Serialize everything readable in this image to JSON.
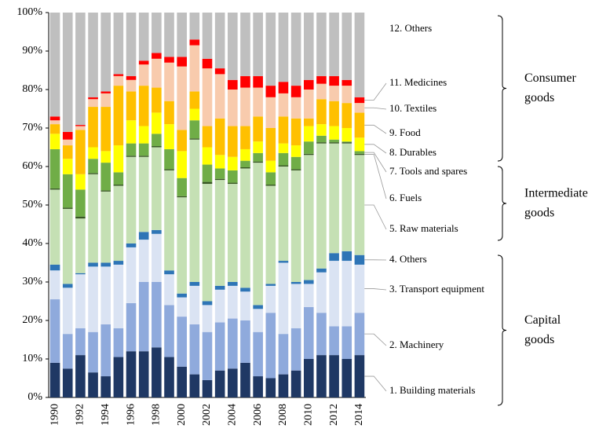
{
  "chart_data": {
    "type": "stacked-bar",
    "categories": [
      "1990",
      null,
      "1992",
      null,
      "1994",
      null,
      "1996",
      null,
      "1998",
      null,
      "2000",
      null,
      "2002",
      null,
      "2004",
      null,
      "2006",
      null,
      "2008",
      null,
      "2010",
      null,
      "2012",
      null,
      "2014"
    ],
    "ylim": [
      0,
      100
    ],
    "yticks": [
      {
        "value": 0,
        "label": "0%"
      },
      {
        "value": 10,
        "label": "10%"
      },
      {
        "value": 20,
        "label": "20%"
      },
      {
        "value": 30,
        "label": "30%"
      },
      {
        "value": 40,
        "label": "40%"
      },
      {
        "value": 50,
        "label": "50%"
      },
      {
        "value": 60,
        "label": "60%"
      },
      {
        "value": 70,
        "label": "70%"
      },
      {
        "value": 80,
        "label": "80%"
      },
      {
        "value": 90,
        "label": "90%"
      },
      {
        "value": 100,
        "label": "100%"
      }
    ],
    "series": [
      {
        "name": "1. Building materials",
        "color": "#1f3864",
        "values": [
          9,
          7.5,
          11,
          6.5,
          5.5,
          10.5,
          12,
          12,
          13,
          10.5,
          8,
          6,
          4.5,
          7,
          7.5,
          9,
          5.5,
          5,
          6,
          7,
          10,
          11,
          11,
          10,
          11
        ]
      },
      {
        "name": "2. Machinery",
        "color": "#8faadc",
        "values": [
          16.5,
          9,
          7,
          10.5,
          13.5,
          7.5,
          12.5,
          18,
          17,
          13.5,
          13,
          13,
          12.5,
          12.5,
          13,
          11,
          11.5,
          17,
          10.5,
          11,
          13.5,
          11,
          7.5,
          8.5,
          11
        ]
      },
      {
        "name": "3. Transport equipment",
        "color": "#dae3f3",
        "values": [
          7.5,
          12,
          14,
          17,
          15,
          16.5,
          14.5,
          11,
          12.5,
          8,
          5,
          10,
          7,
          8.5,
          8.5,
          7.5,
          6,
          7,
          18.5,
          11.5,
          6,
          10.5,
          17,
          17,
          12.5
        ]
      },
      {
        "name": "4. Others",
        "color": "#2e75b6",
        "values": [
          1.5,
          1,
          0.3,
          1,
          1,
          1,
          1,
          2,
          1,
          1,
          1,
          1,
          1,
          1,
          1,
          1,
          1,
          0.5,
          0.5,
          0.5,
          1,
          1,
          2,
          2.5,
          2.5
        ]
      },
      {
        "name": "5. Raw materials",
        "color": "#c5e0b4",
        "values": [
          19.5,
          19.5,
          14.2,
          23,
          18.5,
          19.5,
          22.5,
          19.5,
          21.5,
          26,
          25,
          37,
          30.5,
          27.5,
          25.5,
          31,
          37,
          25.5,
          24.5,
          29,
          32.5,
          32.5,
          28.5,
          28,
          26
        ]
      },
      {
        "name": "6. Fuels",
        "color": "#385723",
        "values": [
          0.3,
          0.3,
          0.5,
          0.3,
          0.3,
          0.3,
          0.3,
          0.3,
          0.3,
          0.3,
          0.3,
          0.3,
          0.5,
          0.3,
          0.3,
          0.3,
          0.3,
          0.3,
          0.3,
          0.3,
          0.3,
          0.3,
          0.3,
          0.3,
          0.3
        ]
      },
      {
        "name": "7. Tools and spares",
        "color": "#70ad47",
        "values": [
          10.2,
          8.7,
          7,
          3.7,
          7.2,
          3.2,
          3.2,
          3.2,
          3.2,
          5.2,
          4.7,
          4.7,
          4.5,
          2.7,
          3.2,
          1.7,
          2.2,
          3.2,
          3.2,
          3.2,
          3.2,
          1.7,
          0.7,
          0.2,
          0.7
        ]
      },
      {
        "name": "8. Durables",
        "color": "#ffff00",
        "values": [
          4,
          4,
          4,
          3,
          3,
          7,
          6,
          4.5,
          5.5,
          6.5,
          7,
          3,
          4.5,
          3.5,
          3.5,
          3,
          3,
          3,
          2.5,
          3,
          4,
          3,
          3.5,
          3.5,
          3.5
        ]
      },
      {
        "name": "9. Food",
        "color": "#ffc000",
        "values": [
          2.5,
          3.5,
          11.5,
          10.5,
          11.5,
          15.5,
          7.5,
          10.5,
          6.5,
          6,
          5.5,
          4.5,
          5.5,
          9.5,
          8,
          6,
          6.5,
          8.5,
          7,
          7,
          2,
          6.5,
          6.5,
          6.5,
          6.5
        ]
      },
      {
        "name": "10. Textiles",
        "color": "#f8cbad",
        "values": [
          1,
          1.5,
          1,
          2,
          3.5,
          2.5,
          3,
          5.5,
          7.5,
          10,
          16.5,
          12,
          15,
          11.5,
          9.5,
          10,
          7.5,
          8,
          6,
          5.5,
          7.5,
          4,
          4,
          4.5,
          2.5
        ]
      },
      {
        "name": "11. Medicines",
        "color": "#ff0000",
        "values": [
          1,
          2,
          0.3,
          0.5,
          0.5,
          0.5,
          1,
          1,
          1.5,
          1.5,
          2.5,
          1.5,
          2.5,
          1.5,
          2.5,
          3,
          3,
          3,
          3,
          3,
          2.5,
          2,
          2.5,
          1.5,
          1.5
        ]
      },
      {
        "name": "12. Others",
        "color": "#bfbfbf",
        "values": [
          27,
          31,
          29.2,
          22,
          20.5,
          16,
          16.5,
          12.5,
          10.5,
          11.5,
          11.5,
          7,
          12,
          14.5,
          17.5,
          16.5,
          16.5,
          19,
          18,
          19,
          17.5,
          16.5,
          16.5,
          17.5,
          22
        ]
      }
    ],
    "groups": [
      {
        "label": [
          "Consumer",
          "goods"
        ]
      },
      {
        "label": [
          "Intermediate",
          "goods"
        ]
      },
      {
        "label": [
          "Capital",
          "goods"
        ]
      }
    ]
  }
}
